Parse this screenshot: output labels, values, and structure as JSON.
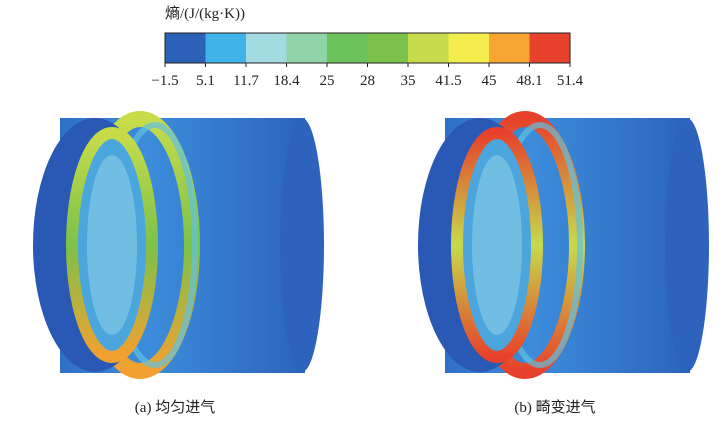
{
  "colorbar": {
    "title": "熵/(J/(kg·K))",
    "labels": [
      "−1.5",
      "5.1",
      "11.7",
      "18.4",
      "25",
      "28",
      "35",
      "41.5",
      "45",
      "48.1",
      "51.4"
    ],
    "colors": [
      "#2b62b8",
      "#3fb2e8",
      "#a2dae2",
      "#90d3a6",
      "#6cc35c",
      "#7cc14a",
      "#c6db4b",
      "#f3ec4c",
      "#f6a630",
      "#e7412b"
    ]
  },
  "panels": [
    {
      "caption": "(a) 均匀进气"
    },
    {
      "caption": "(b) 畸变进气"
    }
  ]
}
